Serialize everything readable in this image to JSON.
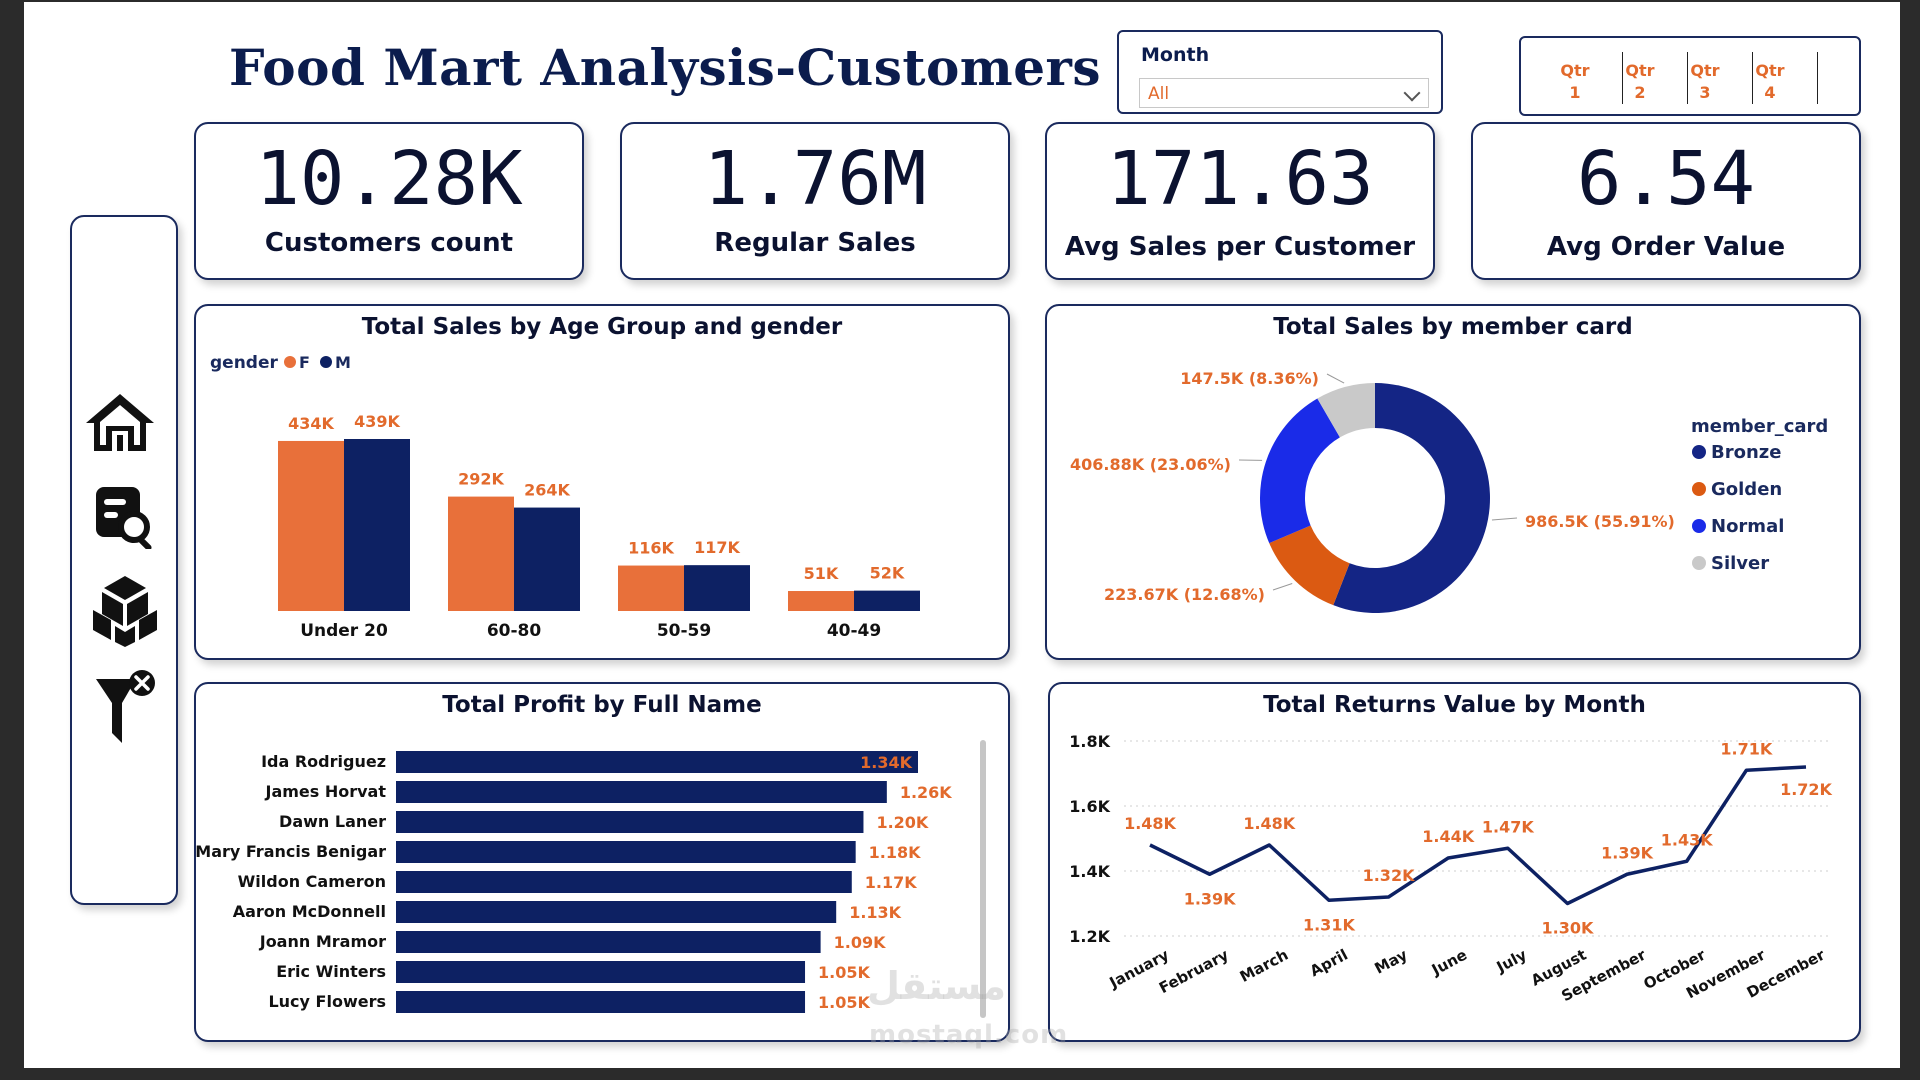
{
  "page_title": "Food Mart Analysis-Customers",
  "month_slicer": {
    "label": "Month",
    "value": "All"
  },
  "quarter_slicer": [
    "Qtr 1",
    "Qtr 2",
    "Qtr 3",
    "Qtr 4"
  ],
  "kpis": [
    {
      "value": "10.28K",
      "caption": "Customers count"
    },
    {
      "value": "1.76M",
      "caption": "Regular Sales"
    },
    {
      "value": "171.63",
      "caption": "Avg Sales per Customer"
    },
    {
      "value": "6.54",
      "caption": "Avg Order Value"
    }
  ],
  "nav_icons": [
    "home-icon",
    "report-search-icon",
    "boxes-icon",
    "clear-filter-icon"
  ],
  "watermark": {
    "text": "مستقل",
    "subtext": "mostaql.com"
  },
  "colors": {
    "navy": "#0d2163",
    "orange": "#e8703a",
    "bronze": "#142585",
    "golden": "#db5a12",
    "normal": "#1a2be8",
    "silver": "#c9c9c9",
    "label_orange": "#e26a2c"
  },
  "chart_data": [
    {
      "type": "bar",
      "title": "Total Sales by Age Group and gender",
      "legend": {
        "title": "gender",
        "position": "top-left"
      },
      "categories": [
        "Under 20",
        "60-80",
        "50-59",
        "40-49"
      ],
      "series": [
        {
          "name": "F",
          "values": [
            434,
            292,
            116,
            51
          ],
          "labels": [
            "434K",
            "292K",
            "116K",
            "51K"
          ]
        },
        {
          "name": "M",
          "values": [
            439,
            264,
            117,
            52
          ],
          "labels": [
            "439K",
            "264K",
            "117K",
            "52K"
          ]
        }
      ],
      "ylim": [
        0,
        480
      ]
    },
    {
      "type": "pie",
      "title": "Total Sales by member card",
      "legend": {
        "title": "member_card",
        "position": "right"
      },
      "slices": [
        {
          "name": "Bronze",
          "value": 986.5,
          "label": "986.5K (55.91%)"
        },
        {
          "name": "Golden",
          "value": 223.67,
          "label": "223.67K (12.68%)"
        },
        {
          "name": "Normal",
          "value": 406.88,
          "label": "406.88K (23.06%)"
        },
        {
          "name": "Silver",
          "value": 147.5,
          "label": "147.5K (8.36%)"
        }
      ]
    },
    {
      "type": "bar",
      "orientation": "horizontal",
      "title": "Total Profit by Full Name",
      "categories": [
        "Ida Rodriguez",
        "James Horvat",
        "Dawn Laner",
        "Mary Francis Benigar",
        "Wildon Cameron",
        "Aaron McDonnell",
        "Joann Mramor",
        "Eric Winters",
        "Lucy Flowers"
      ],
      "values": [
        1.34,
        1.26,
        1.2,
        1.18,
        1.17,
        1.13,
        1.09,
        1.05,
        1.05
      ],
      "labels": [
        "1.34K",
        "1.26K",
        "1.20K",
        "1.18K",
        "1.17K",
        "1.13K",
        "1.09K",
        "1.05K",
        "1.05K"
      ],
      "xlim": [
        0,
        1.34
      ]
    },
    {
      "type": "line",
      "title": "Total Returns Value by Month",
      "x": [
        "January",
        "February",
        "March",
        "April",
        "May",
        "June",
        "July",
        "August",
        "September",
        "October",
        "November",
        "December"
      ],
      "values": [
        1.48,
        1.39,
        1.48,
        1.31,
        1.32,
        1.44,
        1.47,
        1.3,
        1.39,
        1.43,
        1.71,
        1.72
      ],
      "labels": [
        "1.48K",
        "1.39K",
        "1.48K",
        "1.31K",
        "1.32K",
        "1.44K",
        "1.47K",
        "1.30K",
        "1.39K",
        "1.43K",
        "1.71K",
        "1.72K"
      ],
      "y_ticks": [
        "1.2K",
        "1.4K",
        "1.6K",
        "1.8K"
      ],
      "ylim": [
        1.2,
        1.8
      ],
      "grid": true
    }
  ]
}
